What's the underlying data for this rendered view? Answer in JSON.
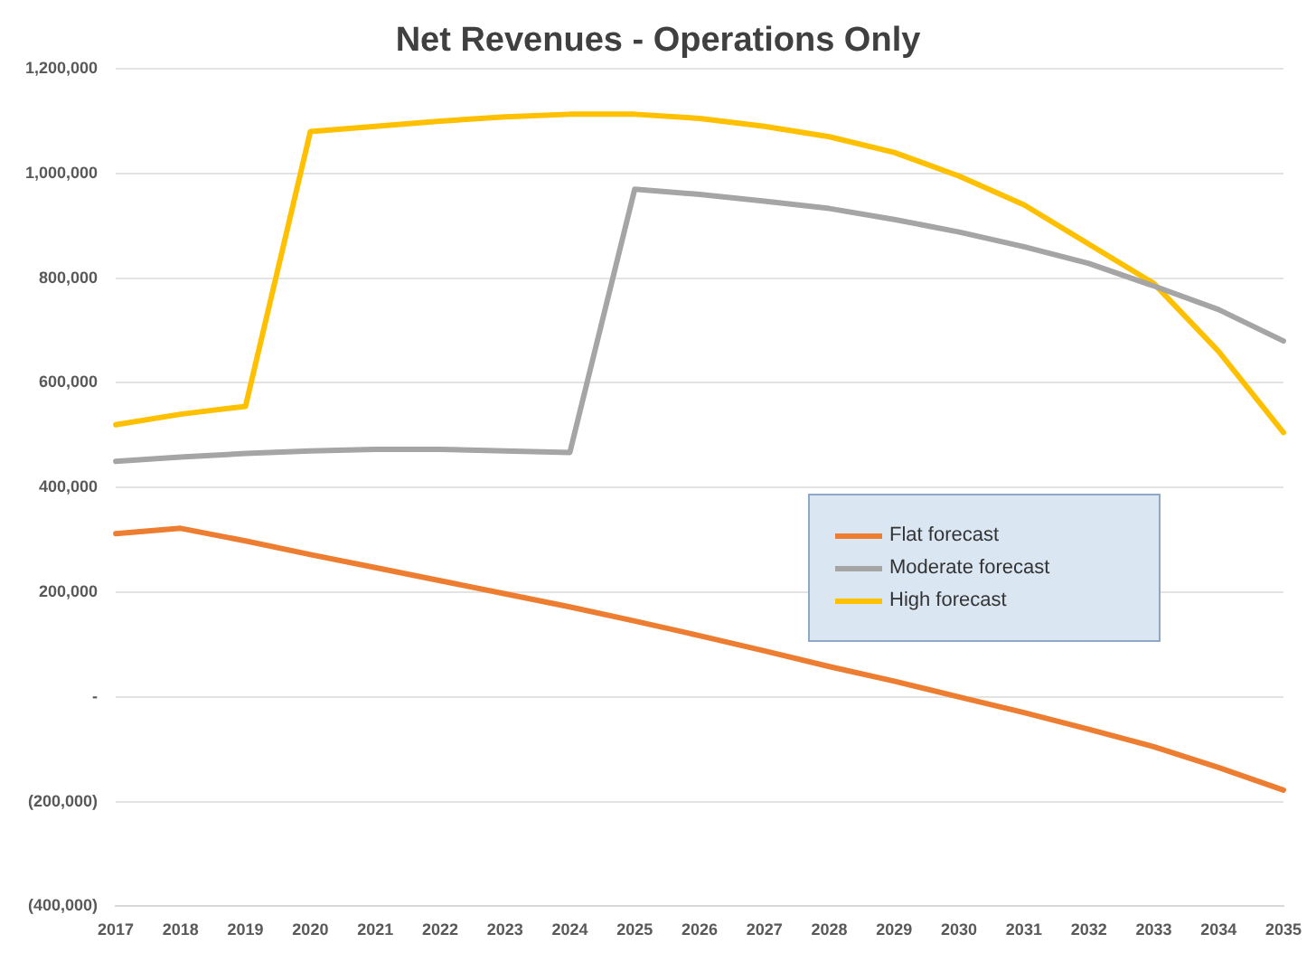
{
  "chart_data": {
    "type": "line",
    "title": "Net Revenues - Operations Only",
    "categories": [
      "2017",
      "2018",
      "2019",
      "2020",
      "2021",
      "2022",
      "2023",
      "2024",
      "2025",
      "2026",
      "2027",
      "2028",
      "2029",
      "2030",
      "2031",
      "2032",
      "2033",
      "2034",
      "2035"
    ],
    "series": [
      {
        "name": "Flat forecast",
        "color": "#ed7d31",
        "values": [
          312000,
          322000,
          298000,
          272000,
          247000,
          222000,
          197000,
          172000,
          145000,
          117000,
          88000,
          58000,
          30000,
          0,
          -30000,
          -62000,
          -95000,
          -135000,
          -178000
        ]
      },
      {
        "name": "Moderate forecast",
        "color": "#a5a5a5",
        "values": [
          450000,
          458000,
          465000,
          470000,
          473000,
          473000,
          470000,
          467000,
          970000,
          960000,
          947000,
          933000,
          912000,
          888000,
          860000,
          828000,
          785000,
          740000,
          680000
        ]
      },
      {
        "name": "High forecast",
        "color": "#ffc000",
        "values": [
          520000,
          540000,
          555000,
          1080000,
          1090000,
          1100000,
          1108000,
          1113000,
          1113000,
          1105000,
          1090000,
          1070000,
          1040000,
          995000,
          940000,
          865000,
          790000,
          660000,
          505000
        ]
      }
    ],
    "ylim": [
      -400000,
      1200000
    ],
    "yticks": [
      {
        "value": -400000,
        "label": "(400,000)"
      },
      {
        "value": -200000,
        "label": "(200,000)"
      },
      {
        "value": 0,
        "label": "-"
      },
      {
        "value": 200000,
        "label": "200,000"
      },
      {
        "value": 400000,
        "label": "400,000"
      },
      {
        "value": 600000,
        "label": "600,000"
      },
      {
        "value": 800000,
        "label": "800,000"
      },
      {
        "value": 1000000,
        "label": "1,000,000"
      },
      {
        "value": 1200000,
        "label": "1,200,000"
      }
    ],
    "grid": "y",
    "legend": "right",
    "marker": "none",
    "line_style": "solid"
  }
}
